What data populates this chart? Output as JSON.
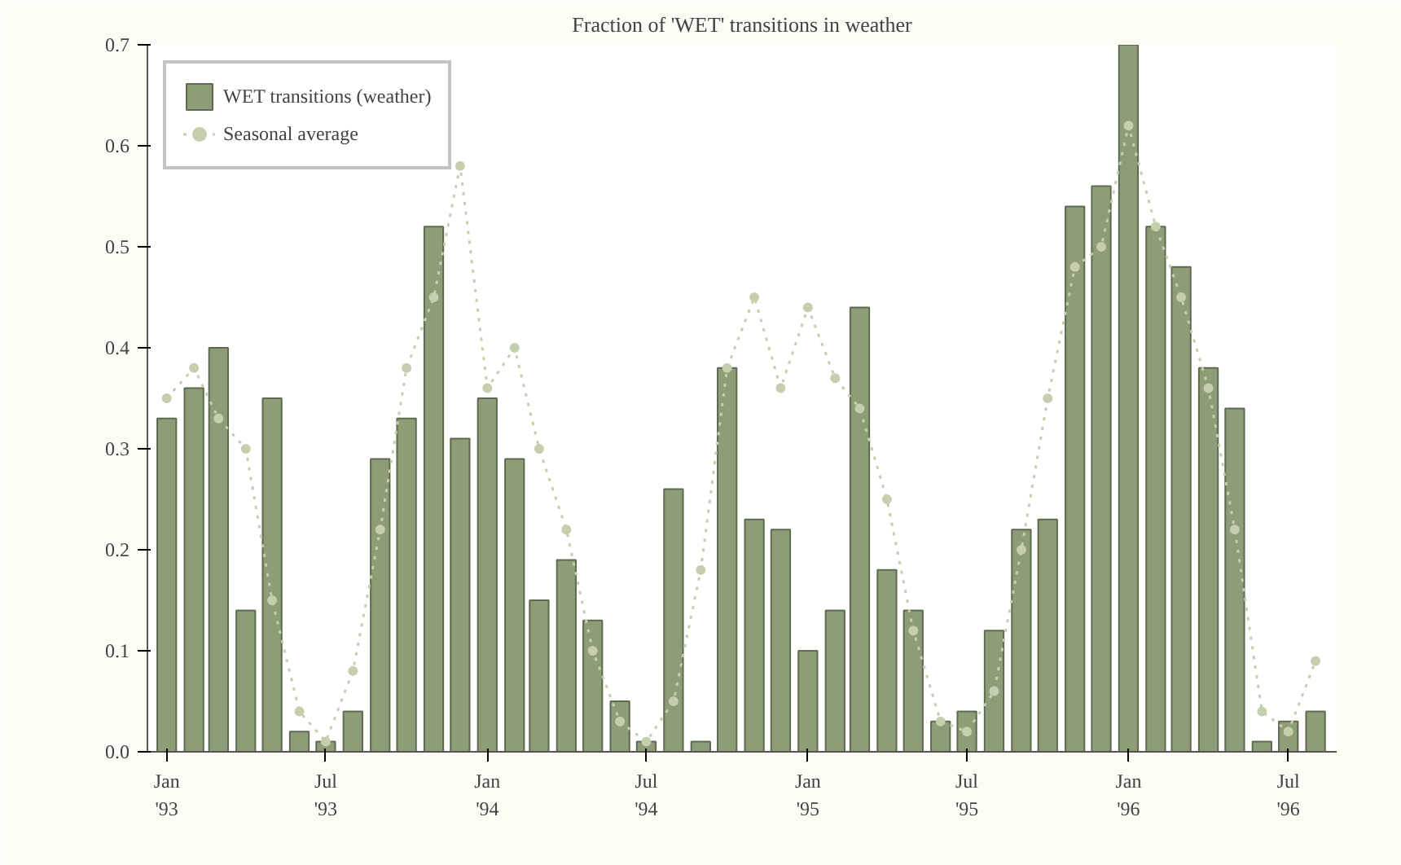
{
  "chart_data": {
    "type": "bar",
    "title": "Fraction of 'WET' transitions in weather",
    "x": [
      "1993-01",
      "1993-02",
      "1993-03",
      "1993-04",
      "1993-05",
      "1993-06",
      "1993-07",
      "1993-08",
      "1993-09",
      "1993-10",
      "1993-11",
      "1993-12",
      "1994-01",
      "1994-02",
      "1994-03",
      "1994-04",
      "1994-05",
      "1994-06",
      "1994-07",
      "1994-08",
      "1994-09",
      "1994-10",
      "1994-11",
      "1994-12",
      "1995-01",
      "1995-02",
      "1995-03",
      "1995-04",
      "1995-05",
      "1995-06",
      "1995-07",
      "1995-08",
      "1995-09",
      "1995-10",
      "1995-11",
      "1995-12",
      "1996-01",
      "1996-02",
      "1996-03",
      "1996-04",
      "1996-05",
      "1996-06",
      "1996-07",
      "1996-08"
    ],
    "series": [
      {
        "name": "WET transitions (weather)",
        "color": "#8e9c78",
        "values": [
          0.33,
          0.36,
          0.4,
          0.14,
          0.35,
          0.02,
          0.01,
          0.04,
          0.29,
          0.33,
          0.52,
          0.31,
          0.35,
          0.29,
          0.15,
          0.19,
          0.13,
          0.05,
          0.01,
          0.26,
          0.01,
          0.38,
          0.23,
          0.22,
          0.1,
          0.14,
          0.44,
          0.18,
          0.14,
          0.03,
          0.04,
          0.12,
          0.22,
          0.23,
          0.54,
          0.56,
          0.7,
          0.52,
          0.48,
          0.38,
          0.34,
          0.01,
          0.03,
          0.04
        ]
      },
      {
        "name": "Seasonal average",
        "type": "line",
        "color": "#c5cfae",
        "line_style": "dotted",
        "marker": "circle",
        "values": [
          0.35,
          0.38,
          0.33,
          0.3,
          0.15,
          0.04,
          0.01,
          0.08,
          0.22,
          0.38,
          0.45,
          0.58,
          0.36,
          0.4,
          0.3,
          0.22,
          0.1,
          0.03,
          0.01,
          0.05,
          0.18,
          0.38,
          0.45,
          0.36,
          0.44,
          0.37,
          0.34,
          0.25,
          0.12,
          0.03,
          0.02,
          0.06,
          0.2,
          0.35,
          0.48,
          0.5,
          0.62,
          0.52,
          0.45,
          0.36,
          0.22,
          0.04,
          0.02,
          0.09
        ]
      }
    ],
    "xlim": [
      "1992-12-10",
      "1996-08-25"
    ],
    "xticks": [
      {
        "value": "1993-01",
        "label": "Jan\n'93"
      },
      {
        "value": "1993-07",
        "label": "Jul\n'93"
      },
      {
        "value": "1994-01",
        "label": "Jan\n'94"
      },
      {
        "value": "1994-07",
        "label": "Jul\n'94"
      },
      {
        "value": "1995-01",
        "label": "Jan\n'95"
      },
      {
        "value": "1995-07",
        "label": "Jul\n'95"
      },
      {
        "value": "1996-01",
        "label": "Jan\n'96"
      },
      {
        "value": "1996-07",
        "label": "Jul\n'96"
      }
    ],
    "ylim": [
      0,
      0.7
    ],
    "yticks": [
      {
        "value": 0,
        "label": "0.0"
      },
      0.1,
      0.2,
      0.3,
      0.4,
      0.5,
      0.6,
      0.7
    ],
    "legend": "top left",
    "grid": false
  }
}
